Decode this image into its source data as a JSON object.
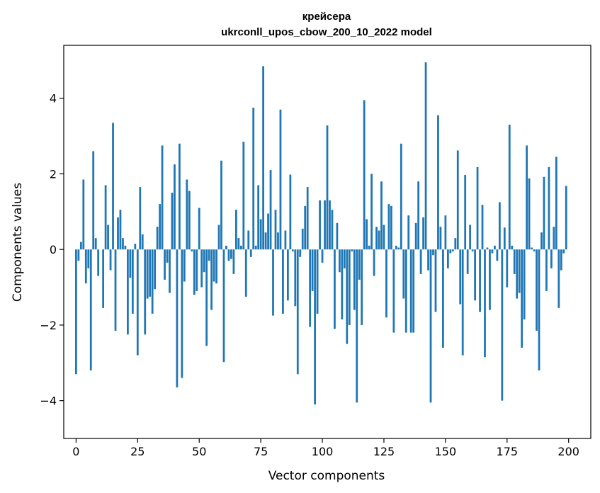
{
  "chart_data": {
    "type": "bar",
    "title": "крейсера",
    "subtitle": "ukrconll_upos_cbow_200_10_2022 model",
    "xlabel": "Vector components",
    "ylabel": "Components values",
    "xlim": [
      -5,
      209
    ],
    "ylim": [
      -5,
      5.4
    ],
    "xticks": [
      0,
      25,
      50,
      75,
      100,
      125,
      150,
      175,
      200
    ],
    "yticks": [
      -4,
      -2,
      0,
      2,
      4
    ],
    "xtick_labels": [
      "0",
      "25",
      "50",
      "75",
      "100",
      "125",
      "150",
      "175",
      "200"
    ],
    "ytick_labels": [
      "−4",
      "−2",
      "0",
      "2",
      "4"
    ],
    "grid": false,
    "bar_color": "#1f77b4",
    "x": [
      0,
      1,
      2,
      3,
      4,
      5,
      6,
      7,
      8,
      9,
      10,
      11,
      12,
      13,
      14,
      15,
      16,
      17,
      18,
      19,
      20,
      21,
      22,
      23,
      24,
      25,
      26,
      27,
      28,
      29,
      30,
      31,
      32,
      33,
      34,
      35,
      36,
      37,
      38,
      39,
      40,
      41,
      42,
      43,
      44,
      45,
      46,
      47,
      48,
      49,
      50,
      51,
      52,
      53,
      54,
      55,
      56,
      57,
      58,
      59,
      60,
      61,
      62,
      63,
      64,
      65,
      66,
      67,
      68,
      69,
      70,
      71,
      72,
      73,
      74,
      75,
      76,
      77,
      78,
      79,
      80,
      81,
      82,
      83,
      84,
      85,
      86,
      87,
      88,
      89,
      90,
      91,
      92,
      93,
      94,
      95,
      96,
      97,
      98,
      99,
      100,
      101,
      102,
      103,
      104,
      105,
      106,
      107,
      108,
      109,
      110,
      111,
      112,
      113,
      114,
      115,
      116,
      117,
      118,
      119,
      120,
      121,
      122,
      123,
      124,
      125,
      126,
      127,
      128,
      129,
      130,
      131,
      132,
      133,
      134,
      135,
      136,
      137,
      138,
      139,
      140,
      141,
      142,
      143,
      144,
      145,
      146,
      147,
      148,
      149,
      150,
      151,
      152,
      153,
      154,
      155,
      156,
      157,
      158,
      159,
      160,
      161,
      162,
      163,
      164,
      165,
      166,
      167,
      168,
      169,
      170,
      171,
      172,
      173,
      174,
      175,
      176,
      177,
      178,
      179,
      180,
      181,
      182,
      183,
      184,
      185,
      186,
      187,
      188,
      189,
      190,
      191,
      192,
      193,
      194,
      195,
      196,
      197,
      198,
      199
    ],
    "values": [
      -3.3,
      -0.3,
      0.2,
      1.85,
      -0.9,
      -0.5,
      -3.2,
      2.6,
      0.3,
      -0.7,
      0.0,
      -1.55,
      1.7,
      0.65,
      -0.55,
      3.35,
      -2.15,
      0.85,
      1.05,
      0.3,
      0.1,
      -2.25,
      -0.75,
      -1.7,
      0.15,
      -2.8,
      1.65,
      0.4,
      -2.25,
      -1.3,
      -1.25,
      -1.7,
      -1.05,
      0.6,
      1.2,
      2.75,
      -0.8,
      -0.35,
      -1.15,
      1.5,
      2.25,
      -3.65,
      2.8,
      -3.4,
      -0.85,
      1.85,
      1.55,
      -0.05,
      -1.2,
      -1.1,
      1.1,
      -1.0,
      -0.6,
      -2.55,
      -0.3,
      -1.6,
      -0.85,
      -0.9,
      0.65,
      2.35,
      -2.98,
      0.1,
      -0.3,
      -0.25,
      -0.65,
      1.05,
      0.3,
      0.1,
      2.85,
      -1.25,
      0.5,
      -0.2,
      3.75,
      0.1,
      1.7,
      0.8,
      4.85,
      0.45,
      0.95,
      2.1,
      -1.75,
      1.05,
      0.45,
      3.7,
      -1.7,
      0.5,
      -1.35,
      1.98,
      -0.05,
      -1.5,
      -3.3,
      -0.2,
      0.55,
      1.15,
      1.65,
      -2.05,
      -1.1,
      -4.1,
      -1.7,
      1.3,
      -0.35,
      1.3,
      3.28,
      1.3,
      1.05,
      -2.1,
      0.7,
      -0.6,
      -1.85,
      -0.5,
      -2.5,
      -2.0,
      -0.05,
      -1.6,
      -4.05,
      -0.8,
      -2.0,
      3.95,
      0.8,
      0.1,
      2.0,
      -0.7,
      0.6,
      0.5,
      1.8,
      0.65,
      -1.8,
      1.2,
      1.15,
      -2.2,
      0.1,
      0.05,
      2.8,
      -1.3,
      -2.2,
      0.9,
      -2.2,
      -2.2,
      0.7,
      1.8,
      -0.65,
      0.85,
      4.95,
      -0.55,
      -4.05,
      -0.15,
      -1.65,
      3.55,
      0.6,
      -2.6,
      0.9,
      -0.5,
      -0.1,
      -0.05,
      0.3,
      2.62,
      -1.45,
      -2.8,
      1.97,
      -0.65,
      0.65,
      -0.05,
      -1.35,
      2.18,
      -1.65,
      1.18,
      -2.85,
      0.05,
      -1.6,
      -0.1,
      0.1,
      -0.3,
      1.25,
      -4.0,
      0.58,
      -1.0,
      3.3,
      0.1,
      -0.65,
      -1.3,
      -1.15,
      -2.6,
      -1.85,
      2.75,
      1.88,
      0.05,
      -0.05,
      -2.15,
      -3.2,
      0.45,
      1.92,
      -1.1,
      2.18,
      -0.5,
      0.6,
      2.45,
      -1.55,
      -0.55,
      -0.1,
      1.68
    ]
  }
}
